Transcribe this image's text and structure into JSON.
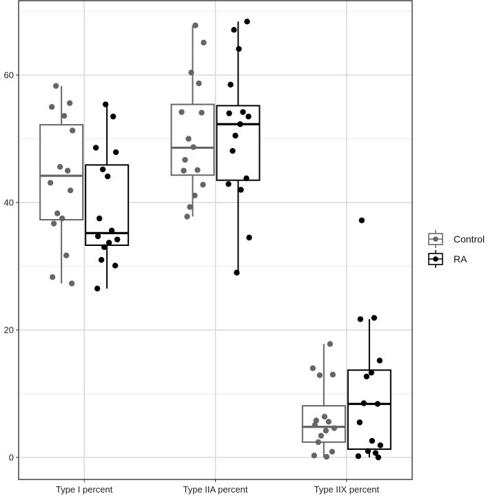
{
  "chart_data": {
    "type": "boxplot",
    "title": "",
    "xlabel": "",
    "ylabel": "",
    "categories": [
      "Type I percent",
      "Type IIA percent",
      "Type IIX percent"
    ],
    "ylim": [
      -3,
      70
    ],
    "yticks": [
      0,
      20,
      40,
      60
    ],
    "grid": true,
    "legend_position": "right",
    "series": [
      {
        "name": "Control",
        "color": "#666666",
        "boxes": [
          {
            "q1": 37.3,
            "median": 44.2,
            "q3": 52.2,
            "whisker_low": 27.3,
            "whisker_high": 58.3
          },
          {
            "q1": 44.3,
            "median": 48.6,
            "q3": 55.4,
            "whisker_low": 37.8,
            "whisker_high": 67.8
          },
          {
            "q1": 2.4,
            "median": 4.8,
            "q3": 8.1,
            "whisker_low": 0.0,
            "whisker_high": 17.8
          }
        ],
        "points": [
          [
            58.3,
            55.6,
            55.0,
            53.6,
            51.3,
            45.6,
            45.0,
            43.1,
            41.9,
            38.3,
            37.5,
            36.7,
            31.7,
            28.3,
            27.3
          ],
          [
            67.8,
            65.1,
            60.4,
            58.7,
            54.2,
            54.1,
            50.0,
            48.7,
            46.7,
            45.1,
            45.0,
            42.8,
            41.1,
            39.3,
            37.8
          ],
          [
            17.8,
            14.0,
            13.0,
            12.9,
            6.4,
            5.8,
            5.6,
            5.1,
            4.6,
            4.2,
            3.4,
            2.4,
            0.9,
            0.3,
            0.1
          ]
        ]
      },
      {
        "name": "RA",
        "color": "#000000",
        "boxes": [
          {
            "q1": 33.3,
            "median": 35.2,
            "q3": 45.9,
            "whisker_low": 26.5,
            "whisker_high": 55.4
          },
          {
            "q1": 43.5,
            "median": 52.3,
            "q3": 55.2,
            "whisker_low": 29.0,
            "whisker_high": 68.4
          },
          {
            "q1": 1.3,
            "median": 8.4,
            "q3": 13.7,
            "whisker_low": 0.0,
            "whisker_high": 21.7
          }
        ],
        "points": [
          [
            55.4,
            53.5,
            48.6,
            47.9,
            45.2,
            44.1,
            37.5,
            35.6,
            34.7,
            34.2,
            33.7,
            33.0,
            31.0,
            30.1,
            26.5
          ],
          [
            68.4,
            67.1,
            64.1,
            58.5,
            54.2,
            54.0,
            53.5,
            52.3,
            50.5,
            48.1,
            43.8,
            42.9,
            42.0,
            34.5,
            29.0
          ],
          [
            37.2,
            21.9,
            21.7,
            15.2,
            13.3,
            12.7,
            8.5,
            8.4,
            5.5,
            2.6,
            1.9,
            1.0,
            0.7,
            0.2,
            0.0
          ]
        ]
      }
    ]
  }
}
